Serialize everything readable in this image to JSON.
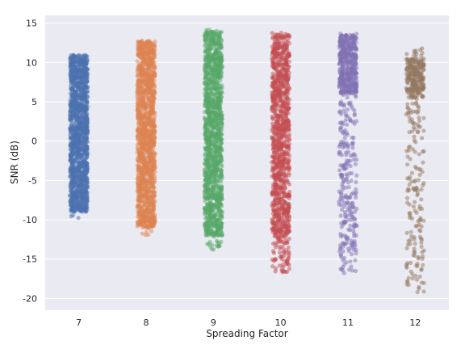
{
  "chart_data": {
    "type": "scatter",
    "style": "strip plot with jitter",
    "xlabel": "Spreading Factor",
    "ylabel": "SNR (dB)",
    "categories": [
      "7",
      "8",
      "9",
      "10",
      "11",
      "12"
    ],
    "ylim": [
      -21.5,
      16
    ],
    "yticks": [
      -20,
      -15,
      -10,
      -5,
      0,
      5,
      10,
      15
    ],
    "grid": true,
    "background": "#eaeaf2",
    "grid_color": "#ffffff",
    "series": [
      {
        "category": "7",
        "color": "#4c72b0",
        "min": -9.8,
        "max": 11.5,
        "dense_min": -9.0,
        "dense_max": 11.0
      },
      {
        "category": "8",
        "color": "#dd8452",
        "min": -12.0,
        "max": 13.2,
        "dense_min": -11.0,
        "dense_max": 12.8
      },
      {
        "category": "9",
        "color": "#55a868",
        "min": -14.0,
        "max": 14.2,
        "dense_min": -12.0,
        "dense_max": 14.0
      },
      {
        "category": "10",
        "color": "#c44e52",
        "min": -16.8,
        "max": 13.8,
        "dense_min": -12.0,
        "dense_max": 13.5
      },
      {
        "category": "11",
        "color": "#8172b3",
        "min": -16.8,
        "max": 14.0,
        "dense_min": 6.0,
        "dense_max": 13.5
      },
      {
        "category": "12",
        "color": "#937860",
        "min": -19.5,
        "max": 11.8,
        "dense_min": 5.5,
        "dense_max": 10.5
      }
    ]
  }
}
